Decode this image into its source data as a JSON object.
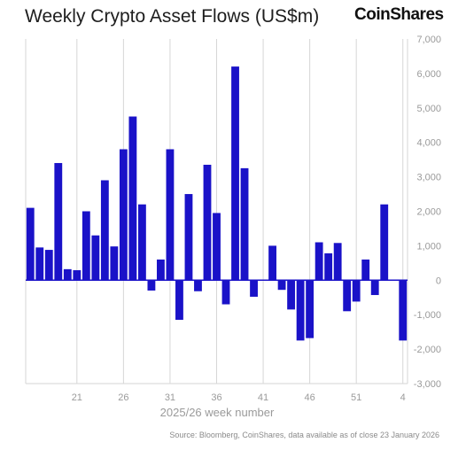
{
  "title": "Weekly Crypto Asset Flows (US$m)",
  "brand": "CoinShares",
  "source": "Source: Bloomberg, CoinShares, data available as of close 23 January 2026",
  "chart_data": {
    "type": "bar",
    "title": "Weekly Crypto Asset Flows (US$m)",
    "xlabel": "2025/26 week number",
    "ylabel": "",
    "ylim": [
      -3000,
      7000
    ],
    "yticks": [
      7000,
      6000,
      5000,
      4000,
      3000,
      2000,
      1000,
      0,
      -1000,
      -2000,
      -3000
    ],
    "ytick_labels": [
      "7,000",
      "6,000",
      "5,000",
      "4,000",
      "3,000",
      "2,000",
      "1,000",
      "0",
      "-1,000",
      "-2,000",
      "-3,000"
    ],
    "xtick_labels": [
      "21",
      "26",
      "31",
      "36",
      "41",
      "46",
      "51",
      "4"
    ],
    "y_axis_side": "right",
    "grid": "vertical at labeled weeks",
    "bar_color": "#1a12c8",
    "categories": [
      "16",
      "17",
      "18",
      "19",
      "20",
      "21",
      "22",
      "23",
      "24",
      "25",
      "26",
      "27",
      "28",
      "29",
      "30",
      "31",
      "32",
      "33",
      "34",
      "35",
      "36",
      "37",
      "38",
      "39",
      "40",
      "41",
      "42",
      "43",
      "44",
      "45",
      "46",
      "47",
      "48",
      "49",
      "50",
      "51",
      "52",
      "1",
      "2",
      "3",
      "4"
    ],
    "values": [
      2100,
      950,
      880,
      3400,
      320,
      290,
      2000,
      1300,
      2900,
      980,
      3800,
      4750,
      2200,
      -300,
      600,
      3800,
      -1150,
      2500,
      -320,
      3350,
      1950,
      -700,
      6200,
      3250,
      -480,
      0,
      1000,
      -280,
      -850,
      -1750,
      -1680,
      1100,
      780,
      1080,
      -900,
      -620,
      600,
      -430,
      2200,
      0,
      -1750
    ]
  }
}
